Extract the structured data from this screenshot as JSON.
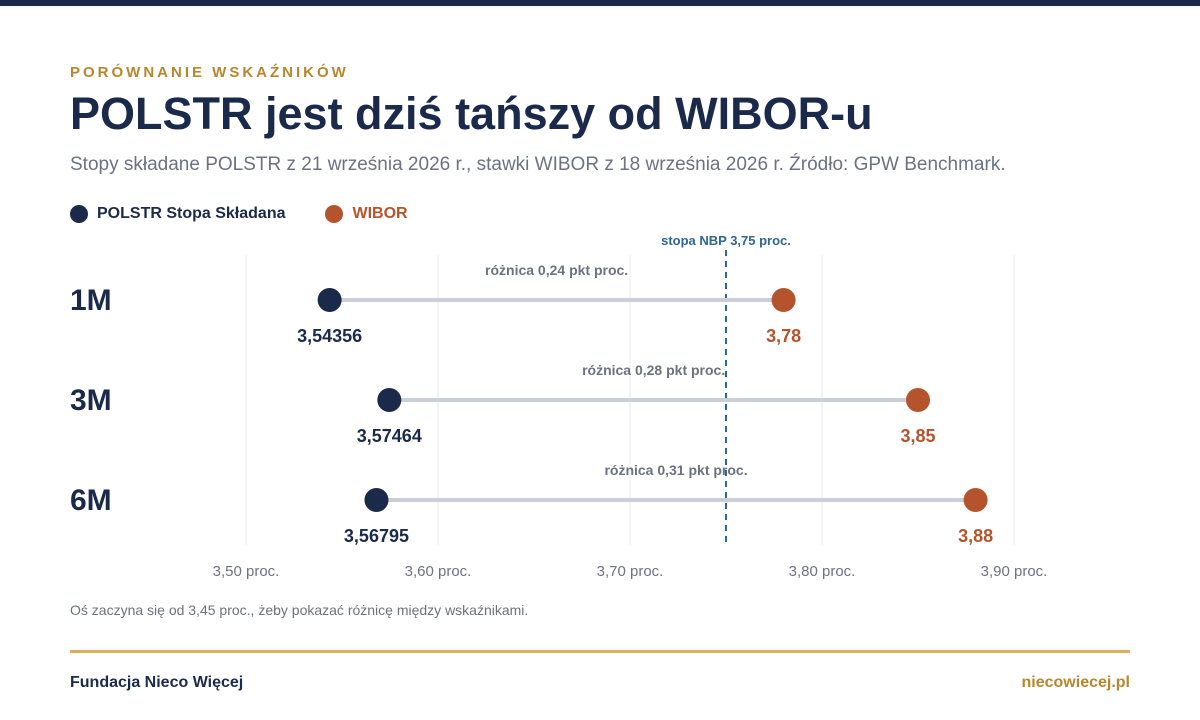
{
  "header": {
    "eyebrow": "PORÓWNANIE WSKAŹNIKÓW",
    "title": "POLSTR jest dziś tańszy od WIBOR-u",
    "subtitle": "Stopy składane POLSTR z 21 września 2026 r., stawki WIBOR z 18 września 2026 r. Źródło: GPW Benchmark."
  },
  "legend": {
    "polstr": "POLSTR Stopa Składana",
    "wibor": "WIBOR"
  },
  "colors": {
    "polstr": "#1b2a4a",
    "wibor": "#b5542c",
    "connector": "#c9ced9",
    "reference": "#2f6690",
    "gap_label": "#6b7280",
    "gold": "#b8862c"
  },
  "chart_data": {
    "type": "dumbbell",
    "categories": [
      "1M",
      "3M",
      "6M"
    ],
    "series": [
      {
        "name": "POLSTR Stopa Składana",
        "values": [
          3.54356,
          3.57464,
          3.56795
        ],
        "labels": [
          "3,54356",
          "3,57464",
          "3,56795"
        ]
      },
      {
        "name": "WIBOR",
        "values": [
          3.78,
          3.85,
          3.88
        ],
        "labels": [
          "3,78",
          "3,85",
          "3,88"
        ]
      }
    ],
    "gap_labels": [
      "różnica 0,24 pkt proc.",
      "różnica 0,28 pkt proc.",
      "różnica 0,31 pkt proc."
    ],
    "reference_line": {
      "value": 3.75,
      "label": "stopa NBP 3,75 proc."
    },
    "xlim": [
      3.45,
      3.95
    ],
    "xticks": [
      {
        "value": 3.5,
        "label": "3,50 proc."
      },
      {
        "value": 3.6,
        "label": "3,60 proc."
      },
      {
        "value": 3.7,
        "label": "3,70 proc."
      },
      {
        "value": 3.8,
        "label": "3,80 proc."
      },
      {
        "value": 3.9,
        "label": "3,90 proc."
      }
    ],
    "grid": true
  },
  "note": "Oś zaczyna się od 3,45 proc., żeby pokazać różnicę między wskaźnikami.",
  "footer": {
    "left": "Fundacja Nieco Więcej",
    "right": "niecowiecej.pl"
  }
}
